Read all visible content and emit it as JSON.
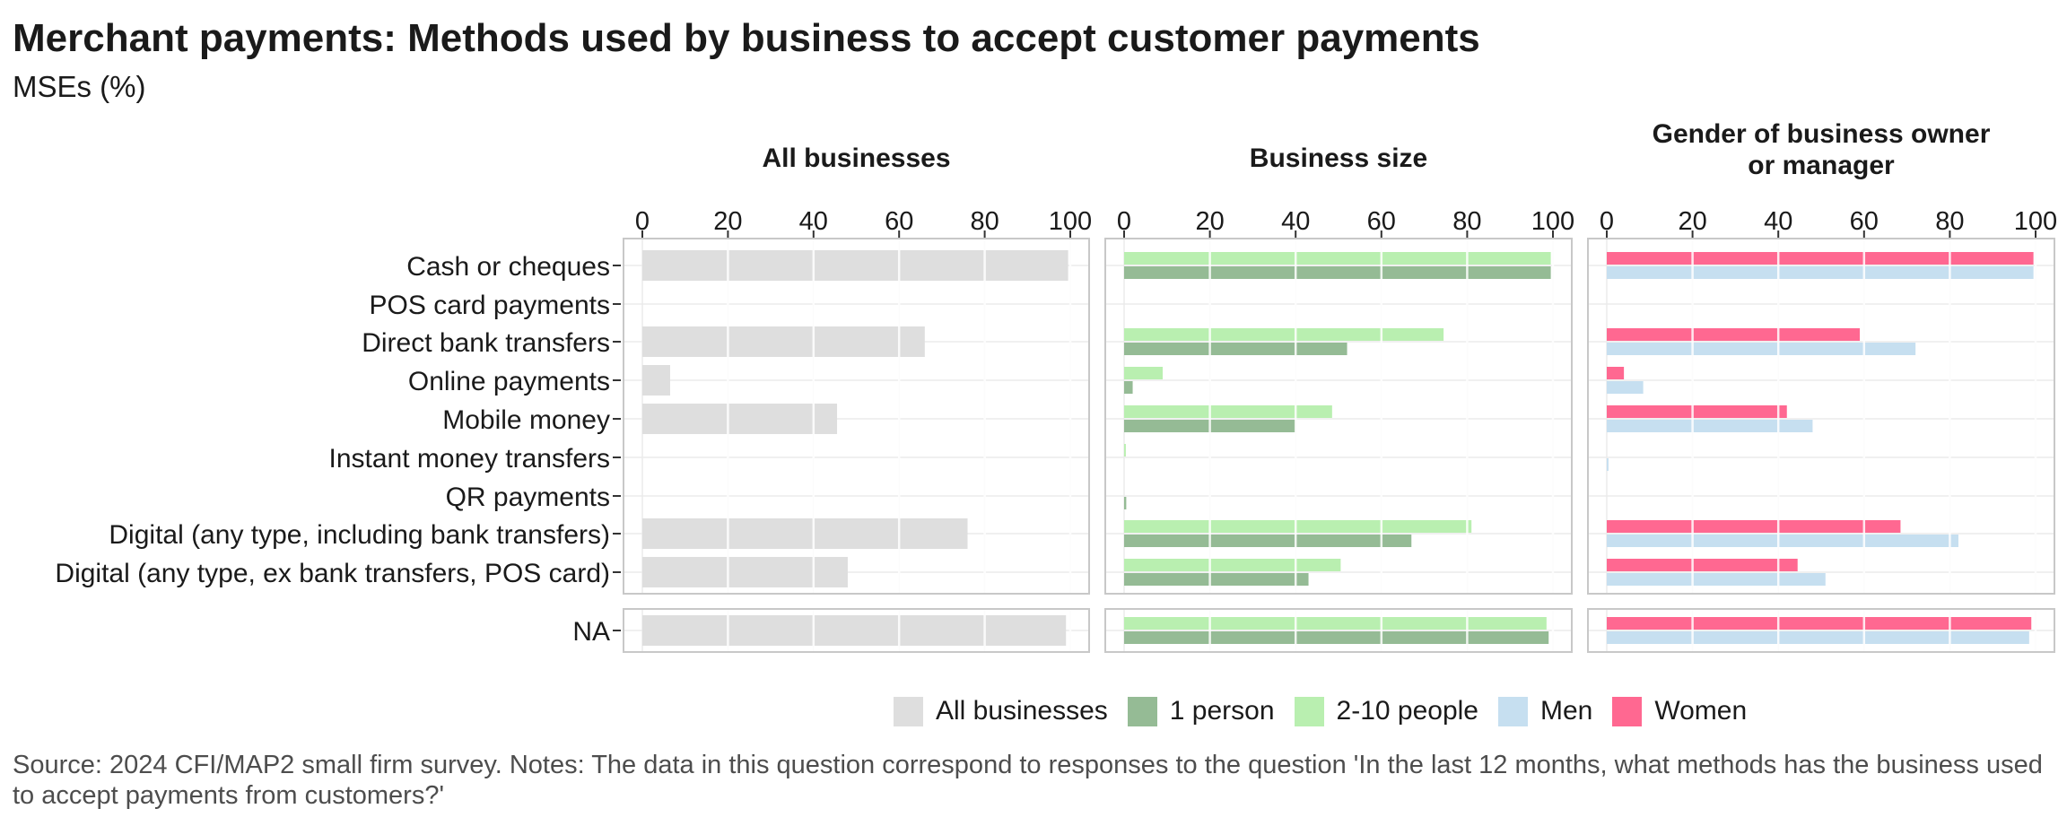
{
  "title": "Merchant payments: Methods used by business to accept customer payments",
  "subtitle": "MSEs (%)",
  "source": "Source: 2024 CFI/MAP2 small firm survey. Notes: The data in this question correspond to responses to the question 'In the last 12 months, what methods has the business used to accept payments from customers?'",
  "legend": [
    {
      "label": "All businesses",
      "color": "#dedede"
    },
    {
      "label": "1 person",
      "color": "#95bb95"
    },
    {
      "label": "2-10 people",
      "color": "#b9efb0"
    },
    {
      "label": "Men",
      "color": "#c6dff0"
    },
    {
      "label": "Women",
      "color": "#ff6891"
    }
  ],
  "chart_data": {
    "type": "bar",
    "orientation": "horizontal",
    "xlim": [
      0,
      100
    ],
    "x_ticks": [
      "0",
      "20",
      "40",
      "60",
      "80",
      "100"
    ],
    "grid": true,
    "legend_position": "bottom",
    "categories": [
      "Cash or cheques",
      "POS card payments",
      "Direct bank transfers",
      "Online payments",
      "Mobile money",
      "Instant money transfers",
      "QR payments",
      "Digital (any type, including bank transfers)",
      "Digital (any type, ex bank transfers, POS card)"
    ],
    "na_category": "NA",
    "panels": [
      {
        "title": "All businesses",
        "series": [
          {
            "name": "All businesses",
            "color": "#dedede",
            "values": [
              99.5,
              0,
              66,
              6.5,
              45.5,
              0,
              0,
              76,
              48
            ],
            "na_value": 99
          }
        ]
      },
      {
        "title": "Business size",
        "series": [
          {
            "name": "2-10 people",
            "color": "#b9efb0",
            "values": [
              99.5,
              0,
              74.5,
              9,
              48.5,
              0.4,
              0,
              81,
              50.5
            ],
            "na_value": 98.5
          },
          {
            "name": "1 person",
            "color": "#95bb95",
            "values": [
              99.5,
              0,
              52,
              2,
              40,
              0,
              0.5,
              67,
              43
            ],
            "na_value": 99
          }
        ]
      },
      {
        "title": "Gender of business owner or manager",
        "title_lines": [
          "Gender of business owner",
          "or manager"
        ],
        "series": [
          {
            "name": "Women",
            "color": "#ff6891",
            "values": [
              99.5,
              0,
              59,
              4,
              42,
              0,
              0,
              68.5,
              44.5
            ],
            "na_value": 99
          },
          {
            "name": "Men",
            "color": "#c6dff0",
            "values": [
              99.5,
              0,
              72,
              8.5,
              48,
              0.4,
              0,
              82,
              51
            ],
            "na_value": 98.5
          }
        ]
      }
    ]
  }
}
